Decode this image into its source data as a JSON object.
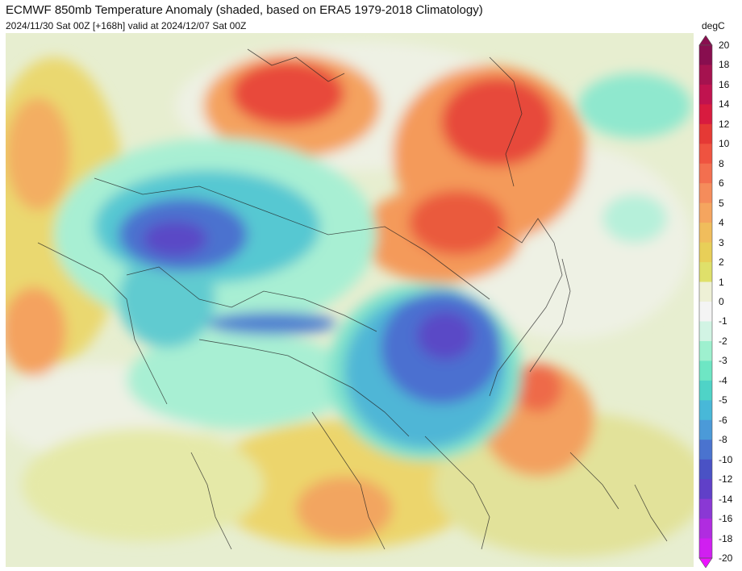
{
  "header": {
    "title": "ECMWF 850mb Temperature Anomaly (shaded, based on ERA5 1979-2018 Climatology)",
    "subtitle": "2024/11/30 Sat 00Z [+168h] valid at 2024/12/07 Sat 00Z"
  },
  "legend": {
    "unit": "degC",
    "ticks": [
      "20",
      "18",
      "16",
      "14",
      "12",
      "10",
      "8",
      "6",
      "5",
      "4",
      "3",
      "2",
      "1",
      "0",
      "-1",
      "-2",
      "-3",
      "-4",
      "-5",
      "-6",
      "-8",
      "-10",
      "-12",
      "-14",
      "-16",
      "-18",
      "-20"
    ],
    "colors": [
      "#880e4f",
      "#a5124f",
      "#c0134f",
      "#d81b3f",
      "#e53935",
      "#ef5340",
      "#f36f4f",
      "#f58c5b",
      "#f5a55f",
      "#f0bd5c",
      "#e8cf58",
      "#dfe06a",
      "#eef0d6",
      "#f4f4f4",
      "#d2f4e4",
      "#9ef0cf",
      "#6ee6c4",
      "#4fd3c7",
      "#48b8d8",
      "#4b9ad8",
      "#4a73cf",
      "#4a52c5",
      "#6040c8",
      "#8a38d4",
      "#b02ce0",
      "#d01ff0",
      "#ec12ff"
    ]
  },
  "map": {
    "description_colors": {
      "warm_strong": "#e8493a",
      "warm_mid": "#f5955a",
      "warm_light": "#eed06a",
      "neutral": "#eef1de",
      "cool_light": "#9ef0cf",
      "cool_mid": "#4fc7d0",
      "cold": "#4a6fd0",
      "cold_deep": "#5b4ac8"
    }
  }
}
